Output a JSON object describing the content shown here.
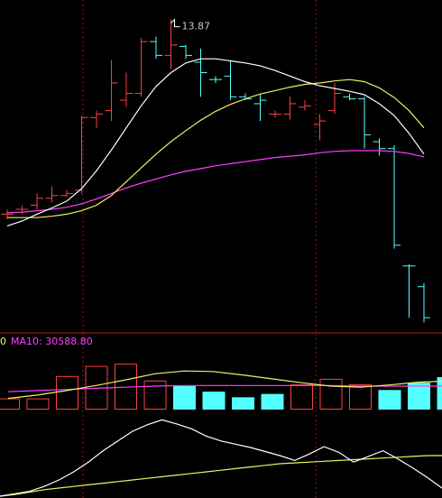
{
  "colors": {
    "background": "#000000",
    "up": "#ff4040",
    "down": "#54ffff",
    "ma_fast": "#ffffff",
    "ma_mid": "#f0f060",
    "ma_slow": "#ff40ff",
    "separator": "#c02020",
    "grid": "#a01010"
  },
  "chart_data": [
    {
      "type": "candlestick",
      "name": "price-panel",
      "ylim": [
        9.5,
        14.1
      ],
      "peak_label": "13.87",
      "candles": [
        {
          "o": 11.05,
          "h": 11.12,
          "l": 10.98,
          "c": 11.05,
          "dir": "up"
        },
        {
          "o": 11.12,
          "h": 11.18,
          "l": 11.05,
          "c": 11.12,
          "dir": "up"
        },
        {
          "o": 11.18,
          "h": 11.35,
          "l": 11.12,
          "c": 11.28,
          "dir": "up"
        },
        {
          "o": 11.28,
          "h": 11.45,
          "l": 11.22,
          "c": 11.32,
          "dir": "up"
        },
        {
          "o": 11.32,
          "h": 11.4,
          "l": 11.3,
          "c": 11.35,
          "dir": "up"
        },
        {
          "o": 11.4,
          "h": 12.48,
          "l": 11.35,
          "c": 12.45,
          "dir": "up"
        },
        {
          "o": 12.45,
          "h": 12.55,
          "l": 12.3,
          "c": 12.5,
          "dir": "up"
        },
        {
          "o": 12.55,
          "h": 13.28,
          "l": 12.4,
          "c": 12.95,
          "dir": "up"
        },
        {
          "o": 12.7,
          "h": 13.1,
          "l": 12.6,
          "c": 12.8,
          "dir": "up"
        },
        {
          "o": 12.8,
          "h": 13.6,
          "l": 12.75,
          "c": 13.55,
          "dir": "up"
        },
        {
          "o": 13.55,
          "h": 13.62,
          "l": 13.3,
          "c": 13.35,
          "dir": "down"
        },
        {
          "o": 13.35,
          "h": 13.87,
          "l": 13.15,
          "c": 13.5,
          "dir": "up"
        },
        {
          "o": 13.48,
          "h": 13.5,
          "l": 13.3,
          "c": 13.35,
          "dir": "down"
        },
        {
          "o": 13.25,
          "h": 13.45,
          "l": 12.75,
          "c": 13.1,
          "dir": "down"
        },
        {
          "o": 13.0,
          "h": 13.05,
          "l": 12.95,
          "c": 13.0,
          "dir": "down"
        },
        {
          "o": 13.05,
          "h": 13.28,
          "l": 12.7,
          "c": 12.75,
          "dir": "down"
        },
        {
          "o": 12.75,
          "h": 12.8,
          "l": 12.7,
          "c": 12.72,
          "dir": "down"
        },
        {
          "o": 12.65,
          "h": 12.8,
          "l": 12.4,
          "c": 12.7,
          "dir": "down"
        },
        {
          "o": 12.5,
          "h": 12.55,
          "l": 12.45,
          "c": 12.5,
          "dir": "up"
        },
        {
          "o": 12.5,
          "h": 12.75,
          "l": 12.42,
          "c": 12.65,
          "dir": "up"
        },
        {
          "o": 12.6,
          "h": 12.7,
          "l": 12.55,
          "c": 12.62,
          "dir": "up"
        },
        {
          "o": 12.35,
          "h": 12.5,
          "l": 12.12,
          "c": 12.4,
          "dir": "up"
        },
        {
          "o": 12.55,
          "h": 12.95,
          "l": 12.5,
          "c": 12.8,
          "dir": "up"
        },
        {
          "o": 12.75,
          "h": 12.8,
          "l": 12.7,
          "c": 12.72,
          "dir": "down"
        },
        {
          "o": 12.72,
          "h": 12.75,
          "l": 12.0,
          "c": 12.2,
          "dir": "down"
        },
        {
          "o": 12.1,
          "h": 12.15,
          "l": 11.9,
          "c": 12.0,
          "dir": "down"
        },
        {
          "o": 12.0,
          "h": 12.05,
          "l": 10.55,
          "c": 10.6,
          "dir": "down"
        },
        {
          "o": 10.3,
          "h": 10.32,
          "l": 9.55,
          "c": 10.3,
          "dir": "down"
        },
        {
          "o": 10.0,
          "h": 10.05,
          "l": 9.48,
          "c": 9.55,
          "dir": "down"
        }
      ],
      "ma_fast": [
        10.88,
        10.95,
        11.05,
        11.14,
        11.24,
        11.42,
        11.68,
        11.98,
        12.3,
        12.62,
        12.9,
        13.1,
        13.24,
        13.3,
        13.3,
        13.27,
        13.24,
        13.2,
        13.13,
        13.05,
        12.97,
        12.91,
        12.87,
        12.83,
        12.78,
        12.65,
        12.48,
        12.22,
        11.92
      ],
      "ma_mid": [
        11.0,
        11.0,
        11.0,
        11.02,
        11.05,
        11.1,
        11.18,
        11.32,
        11.52,
        11.72,
        11.92,
        12.1,
        12.26,
        12.41,
        12.54,
        12.64,
        12.72,
        12.79,
        12.84,
        12.89,
        12.93,
        12.95,
        12.98,
        13.0,
        12.97,
        12.88,
        12.74,
        12.55,
        12.3
      ],
      "ma_slow": [
        11.07,
        11.08,
        11.1,
        11.12,
        11.15,
        11.2,
        11.27,
        11.35,
        11.43,
        11.5,
        11.56,
        11.62,
        11.67,
        11.71,
        11.75,
        11.78,
        11.81,
        11.84,
        11.87,
        11.89,
        11.91,
        11.94,
        11.96,
        11.97,
        11.97,
        11.97,
        11.96,
        11.93,
        11.88
      ]
    },
    {
      "type": "bar",
      "name": "volume-panel",
      "label_prefix": "0",
      "ma10_label": "MA10: 30588.80",
      "ylim": [
        0,
        10
      ],
      "bars": [
        {
          "v": 2.0,
          "dir": "up"
        },
        {
          "v": 2.0,
          "dir": "up"
        },
        {
          "v": 6.0,
          "dir": "up"
        },
        {
          "v": 7.8,
          "dir": "up"
        },
        {
          "v": 8.2,
          "dir": "up"
        },
        {
          "v": 5.2,
          "dir": "up"
        },
        {
          "v": 4.2,
          "dir": "down"
        },
        {
          "v": 3.2,
          "dir": "down"
        },
        {
          "v": 2.2,
          "dir": "down"
        },
        {
          "v": 2.8,
          "dir": "down"
        },
        {
          "v": 4.5,
          "dir": "up"
        },
        {
          "v": 5.5,
          "dir": "up"
        },
        {
          "v": 4.5,
          "dir": "up"
        },
        {
          "v": 3.5,
          "dir": "down"
        },
        {
          "v": 4.8,
          "dir": "down"
        },
        {
          "v": 5.8,
          "dir": "down"
        }
      ],
      "ma_fast": [
        2.0,
        2.6,
        3.4,
        4.3,
        5.3,
        6.4,
        6.9,
        6.8,
        6.2,
        5.5,
        4.8,
        4.2,
        4.0,
        4.4,
        4.9,
        5.1
      ],
      "ma_slow": [
        3.2,
        3.4,
        3.6,
        3.8,
        4.0,
        4.2,
        4.3,
        4.3,
        4.3,
        4.3,
        4.3,
        4.3,
        4.2,
        4.2,
        4.2,
        4.2
      ]
    },
    {
      "type": "line",
      "name": "indicator-panel",
      "ylim": [
        0,
        10
      ],
      "x": [
        0,
        1,
        2,
        3,
        4,
        5,
        6,
        7,
        8,
        9,
        10,
        11,
        12,
        13,
        14,
        15,
        16,
        17,
        18,
        19,
        20,
        21,
        22,
        23,
        24,
        25,
        26,
        27,
        28,
        29,
        30
      ],
      "line1": [
        0.0,
        0.3,
        0.6,
        1.2,
        2.0,
        3.0,
        4.2,
        5.6,
        6.8,
        8.0,
        8.8,
        9.4,
        8.9,
        8.3,
        7.4,
        6.8,
        6.4,
        6.0,
        5.5,
        5.0,
        4.4,
        5.2,
        6.1,
        5.4,
        4.2,
        4.9,
        5.6,
        4.6,
        3.5,
        2.3,
        1.0
      ],
      "line2": [
        0.0,
        0.2,
        0.5,
        0.8,
        1.0,
        1.2,
        1.4,
        1.6,
        1.8,
        2.0,
        2.2,
        2.4,
        2.6,
        2.8,
        3.0,
        3.2,
        3.4,
        3.6,
        3.8,
        4.0,
        4.1,
        4.2,
        4.3,
        4.4,
        4.5,
        4.6,
        4.7,
        4.8,
        4.9,
        5.0,
        5.0
      ]
    }
  ]
}
